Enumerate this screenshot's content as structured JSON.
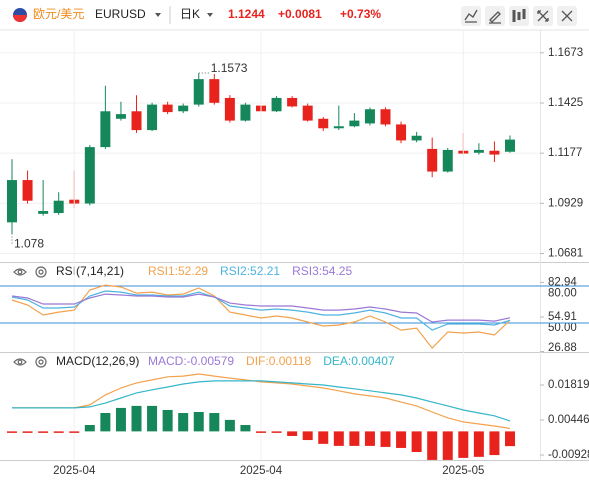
{
  "header": {
    "pair_name": "欧元/美元",
    "symbol": "EURUSD",
    "period": "日K",
    "price": "1.1244",
    "change": "+0.0081",
    "change_pct": "+0.73%"
  },
  "chart_data": [
    {
      "type": "candlestick",
      "categories": [
        null,
        null,
        null,
        null,
        "2025-04",
        null,
        null,
        null,
        null,
        null,
        null,
        null,
        null,
        null,
        null,
        null,
        "2025-04",
        null,
        null,
        null,
        null,
        null,
        null,
        null,
        null,
        null,
        null,
        null,
        null,
        "2025-05",
        null,
        null,
        null
      ],
      "open": [
        1.0835,
        1.1044,
        1.0877,
        1.0881,
        1.0947,
        1.0928,
        1.1207,
        1.1347,
        1.1384,
        1.1291,
        1.1417,
        1.1384,
        1.1417,
        1.1543,
        1.145,
        1.1338,
        1.1412,
        1.1384,
        1.145,
        1.1412,
        1.1347,
        1.13,
        1.131,
        1.1324,
        1.1394,
        1.1319,
        1.124,
        1.1198,
        1.1086,
        1.1189,
        1.1179,
        1.1189,
        1.1184
      ],
      "high": [
        1.1147,
        1.1091,
        1.1044,
        1.0984,
        1.1091,
        1.1217,
        1.151,
        1.1431,
        1.1463,
        1.1426,
        1.1431,
        1.1422,
        1.1573,
        1.1568,
        1.1464,
        1.1426,
        1.1422,
        1.1459,
        1.1459,
        1.1422,
        1.1356,
        1.1412,
        1.1375,
        1.1403,
        1.1403,
        1.1333,
        1.1282,
        1.1254,
        1.1203,
        1.1277,
        1.1226,
        1.1235,
        1.1264
      ],
      "low": [
        1.078,
        1.0928,
        1.0868,
        1.0872,
        1.0905,
        1.0919,
        1.1198,
        1.1338,
        1.1277,
        1.1286,
        1.137,
        1.1375,
        1.1407,
        1.1417,
        1.1328,
        1.1333,
        1.1347,
        1.138,
        1.1403,
        1.1333,
        1.1286,
        1.1291,
        1.1305,
        1.1314,
        1.131,
        1.1226,
        1.1231,
        1.1058,
        1.1081,
        1.117,
        1.117,
        1.1133,
        1.1179
      ],
      "close": [
        1.1044,
        1.0942,
        1.0891,
        1.0942,
        1.0928,
        1.1207,
        1.1384,
        1.137,
        1.1291,
        1.1417,
        1.138,
        1.1412,
        1.1543,
        1.1426,
        1.1338,
        1.1417,
        1.1384,
        1.145,
        1.1408,
        1.1338,
        1.13,
        1.131,
        1.1338,
        1.1394,
        1.1319,
        1.124,
        1.1263,
        1.1086,
        1.1193,
        1.1175,
        1.1193,
        1.117,
        1.1244
      ],
      "up_color": "#15875a",
      "down_color": "#e8231e",
      "ylim": [
        1.0639,
        1.1766
      ],
      "yticks": [
        1.1673,
        1.1425,
        1.1177,
        1.0929,
        1.0681
      ]
    },
    {
      "type": "line",
      "title": "RSI(7,14,21)",
      "series": [
        {
          "name": "RSI1:52.29",
          "color": "#f2a24e",
          "values": [
            68.7,
            64.6,
            56.5,
            58.9,
            60.5,
            76.8,
            80.8,
            79.2,
            74.3,
            75.1,
            72.7,
            73.5,
            78.4,
            71.9,
            58.9,
            56.5,
            54.1,
            55.7,
            54.1,
            50.8,
            47.6,
            48.4,
            50.8,
            55.7,
            50.8,
            44.3,
            45.9,
            29.7,
            42.7,
            41.9,
            42.7,
            40.3,
            52.29
          ]
        },
        {
          "name": "RSI2:52.21",
          "color": "#4fb3e0",
          "values": [
            71.1,
            68.7,
            62.2,
            62.2,
            63.0,
            71.9,
            76.0,
            75.1,
            72.7,
            72.7,
            71.9,
            71.9,
            75.1,
            71.1,
            63.8,
            62.2,
            60.5,
            61.4,
            60.5,
            58.9,
            56.5,
            56.5,
            58.1,
            60.5,
            58.1,
            54.1,
            54.1,
            44.3,
            49.2,
            49.2,
            49.2,
            48.4,
            52.21
          ]
        },
        {
          "name": "RSI3:54.25",
          "color": "#9b78d6",
          "values": [
            71.9,
            70.3,
            65.4,
            65.4,
            65.4,
            70.3,
            73.5,
            72.7,
            71.9,
            71.9,
            71.1,
            71.1,
            73.5,
            71.1,
            66.2,
            64.6,
            63.8,
            63.8,
            63.8,
            62.2,
            60.5,
            60.5,
            61.4,
            63.0,
            61.4,
            58.9,
            58.1,
            50.8,
            52.4,
            52.4,
            52.4,
            51.6,
            54.25
          ]
        }
      ],
      "ylim": [
        26.5,
        84.9
      ],
      "yticks": [
        {
          "value": 80,
          "label": "80.00"
        },
        82.94,
        54.91,
        {
          "value": 50,
          "label": "50.00"
        },
        26.88
      ],
      "hlines": [
        80,
        50
      ],
      "hline_color": "#3a8fd8"
    },
    {
      "type": "combo",
      "title": "MACD(12,26,9)",
      "series": [
        {
          "name": "MACD:-0.00579",
          "type": "bar",
          "color": "#9b78d6",
          "up_color": "#15875a",
          "down_color": "#e8231e",
          "values": [
            -0.0003,
            -0.0003,
            -0.0003,
            -0.0003,
            -0.0003,
            0.0025,
            0.0072,
            0.0092,
            0.01,
            0.01,
            0.0084,
            0.0072,
            0.0076,
            0.0072,
            0.0045,
            0.0025,
            -0.0002,
            -0.0003,
            -0.0018,
            -0.0034,
            -0.0049,
            -0.0057,
            -0.0057,
            -0.0057,
            -0.0061,
            -0.0065,
            -0.0081,
            -0.0112,
            -0.0112,
            -0.0104,
            -0.01,
            -0.0093,
            -0.00579
          ]
        },
        {
          "name": "DIF:0.00118",
          "type": "line",
          "color": "#f2a24e",
          "values": [
            0.0092,
            0.0092,
            0.0092,
            0.0092,
            0.0092,
            0.0104,
            0.0143,
            0.017,
            0.019,
            0.0202,
            0.0214,
            0.0217,
            0.0225,
            0.0217,
            0.0209,
            0.0202,
            0.0194,
            0.019,
            0.0186,
            0.0178,
            0.017,
            0.0159,
            0.0147,
            0.0139,
            0.0131,
            0.0115,
            0.01,
            0.0076,
            0.0053,
            0.0037,
            0.0029,
            0.0021,
            0.00118
          ]
        },
        {
          "name": "DEA:0.00407",
          "type": "line",
          "color": "#35b6c9",
          "values": [
            0.0092,
            0.0092,
            0.0092,
            0.0092,
            0.0092,
            0.0096,
            0.0111,
            0.0131,
            0.0151,
            0.0163,
            0.0174,
            0.0186,
            0.0194,
            0.0198,
            0.0198,
            0.0198,
            0.0198,
            0.0194,
            0.019,
            0.0186,
            0.0182,
            0.0174,
            0.0167,
            0.0159,
            0.0151,
            0.0143,
            0.0131,
            0.0115,
            0.01,
            0.0084,
            0.0072,
            0.0061,
            0.00407
          ]
        }
      ],
      "ylim": [
        -0.01123,
        0.02408
      ],
      "yticks": [
        0.01819,
        0.00446,
        -0.00928
      ]
    }
  ]
}
